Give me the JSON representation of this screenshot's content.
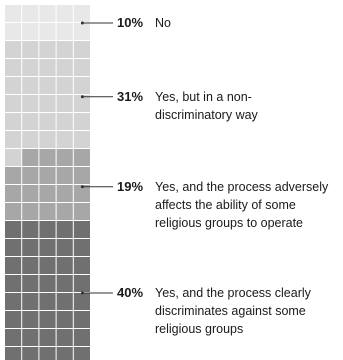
{
  "chart_data": {
    "type": "waffle",
    "total": 100,
    "columns": 5,
    "categories": [
      {
        "percent": 10,
        "percent_label": "10%",
        "label": "No",
        "color": "#e8e8e8"
      },
      {
        "percent": 31,
        "percent_label": "31%",
        "label": "Yes, but in a non-discriminatory way",
        "color": "#d3d3d3"
      },
      {
        "percent": 19,
        "percent_label": "19%",
        "label": "Yes, and the process adversely affects the ability of some religious groups to operate",
        "color": "#a7a7a7"
      },
      {
        "percent": 40,
        "percent_label": "40%",
        "label": "Yes, and the process clearly discriminates against some religious groups",
        "color": "#707070"
      }
    ]
  }
}
